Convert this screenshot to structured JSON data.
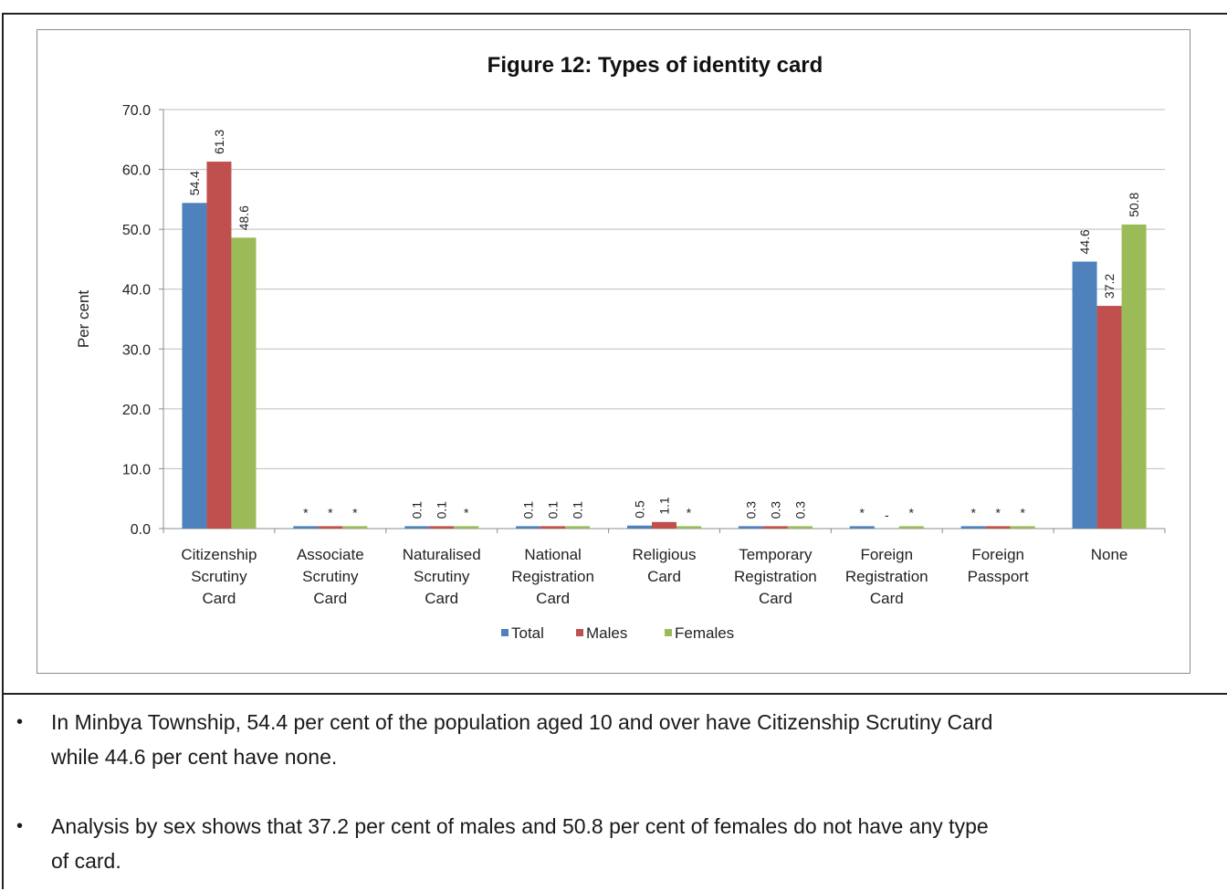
{
  "chart_data": {
    "type": "bar",
    "title": "Figure 12:  Types of identity card",
    "ylabel": "Per cent",
    "xlabel": "",
    "ylim": [
      0,
      70
    ],
    "yticks": [
      "0.0",
      "10.0",
      "20.0",
      "30.0",
      "40.0",
      "50.0",
      "60.0",
      "70.0"
    ],
    "grid": true,
    "legend_position": "bottom",
    "categories": [
      [
        "Citizenship",
        "Scrutiny",
        "Card"
      ],
      [
        "Associate",
        "Scrutiny",
        "Card"
      ],
      [
        "Naturalised",
        "Scrutiny",
        "Card"
      ],
      [
        "National",
        "Registration",
        "Card"
      ],
      [
        "Religious",
        "Card"
      ],
      [
        "Temporary",
        "Registration",
        "Card"
      ],
      [
        "Foreign",
        "Registration",
        "Card"
      ],
      [
        "Foreign",
        "Passport"
      ],
      [
        "None"
      ]
    ],
    "series": [
      {
        "name": "Total",
        "color": "#4f81bd",
        "values": [
          54.4,
          0.4,
          0.4,
          0.4,
          0.5,
          0.4,
          0.4,
          0.4,
          44.6
        ],
        "labels": [
          "54.4",
          "*",
          "0.1",
          "0.1",
          "0.5",
          "0.3",
          "*",
          "*",
          "44.6"
        ]
      },
      {
        "name": "Males",
        "color": "#c0504d",
        "values": [
          61.3,
          0.4,
          0.4,
          0.4,
          1.1,
          0.4,
          0,
          0.4,
          37.2
        ],
        "labels": [
          "61.3",
          "*",
          "0.1",
          "0.1",
          "1.1",
          "0.3",
          "-",
          "*",
          "37.2"
        ]
      },
      {
        "name": "Females",
        "color": "#9bbb59",
        "values": [
          48.6,
          0.4,
          0.4,
          0.4,
          0.4,
          0.4,
          0.4,
          0.4,
          50.8
        ],
        "labels": [
          "48.6",
          "*",
          "*",
          "0.1",
          "*",
          "0.3",
          "*",
          "*",
          "50.8"
        ]
      }
    ]
  },
  "bullets": [
    {
      "symbol": "•",
      "line1": "In Minbya Township, 54.4 per cent of the population aged 10 and over have Citizenship Scrutiny Card",
      "line2": "while 44.6 per cent have none."
    },
    {
      "symbol": "•",
      "line1": "Analysis by sex shows that 37.2 per cent of males and 50.8 per cent of females do not have any type",
      "line2": "of card."
    }
  ]
}
